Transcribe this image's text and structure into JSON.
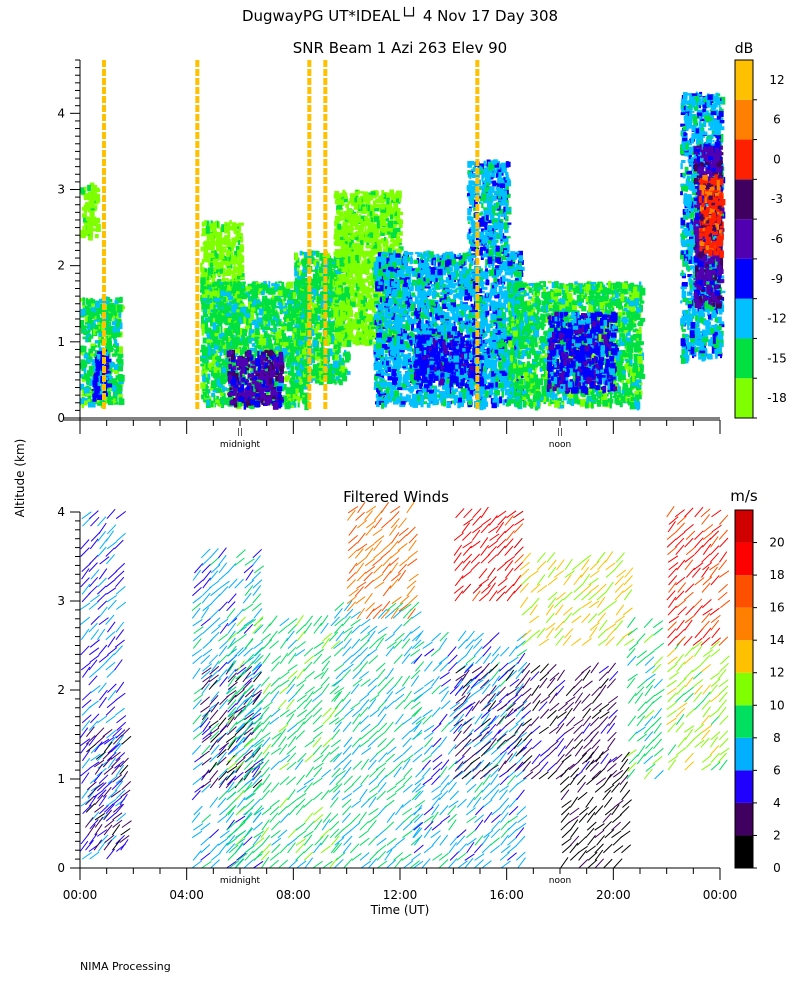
{
  "header": {
    "title": "DugwayPG UT*IDEAL└┘   4 Nov 17 Day 308",
    "ylabel_shared": "Altitude (km)",
    "footer": "NIMA Processing"
  },
  "colors": {
    "snr_scale": [
      "#7fff00",
      "#00e040",
      "#00c0ff",
      "#0000ff",
      "#5000b0",
      "#400060",
      "#ff2000",
      "#ff8000",
      "#ffc000"
    ],
    "wind_scale": [
      "#000000",
      "#400060",
      "#2000ff",
      "#00b0ff",
      "#00e060",
      "#80ff00",
      "#ffc000",
      "#ff8000",
      "#ff5000",
      "#ff0000",
      "#d00000"
    ]
  },
  "chart_data": [
    {
      "type": "heatmap",
      "title": "SNR Beam 1 Azi 263 Elev 90",
      "ylabel": "Altitude (km)",
      "ylim": [
        0,
        4.7
      ],
      "y_ticks": [
        "0",
        "1",
        "2",
        "3",
        "4"
      ],
      "x_range_hours": [
        0,
        24
      ],
      "x_annotations": [
        {
          "hour": 6,
          "label": "midnight"
        },
        {
          "hour": 18,
          "label": "noon"
        }
      ],
      "colorbar": {
        "unit": "dB",
        "tick_labels": [
          "12",
          "6",
          "0",
          "-3",
          "-6",
          "-9",
          "-12",
          "-15",
          "-18"
        ]
      },
      "data_top_km": 4.7,
      "data_bottom_km": 0.2,
      "echo_regions": [
        {
          "x": [
            0.0,
            0.6
          ],
          "y": [
            2.4,
            3.1
          ],
          "level": 0
        },
        {
          "x": [
            0.0,
            1.5
          ],
          "y": [
            0.2,
            1.6
          ],
          "level": 1
        },
        {
          "x": [
            0.4,
            1.0
          ],
          "y": [
            0.3,
            0.9
          ],
          "level": 3
        },
        {
          "x": [
            4.5,
            6.0
          ],
          "y": [
            1.4,
            2.6
          ],
          "level": 0
        },
        {
          "x": [
            4.5,
            8.5
          ],
          "y": [
            0.2,
            1.8
          ],
          "level": 1
        },
        {
          "x": [
            5.5,
            7.5
          ],
          "y": [
            0.2,
            0.9
          ],
          "level": 4
        },
        {
          "x": [
            8.0,
            10.0
          ],
          "y": [
            0.5,
            2.2
          ],
          "level": 1
        },
        {
          "x": [
            9.5,
            12.0
          ],
          "y": [
            1.0,
            3.0
          ],
          "level": 0
        },
        {
          "x": [
            11.0,
            16.5
          ],
          "y": [
            0.2,
            2.2
          ],
          "level": 2
        },
        {
          "x": [
            12.5,
            15.0
          ],
          "y": [
            0.5,
            1.1
          ],
          "level": 3
        },
        {
          "x": [
            14.5,
            16.0
          ],
          "y": [
            2.2,
            3.4
          ],
          "level": 2
        },
        {
          "x": [
            16.0,
            21.0
          ],
          "y": [
            0.2,
            1.8
          ],
          "level": 1
        },
        {
          "x": [
            17.5,
            20.0
          ],
          "y": [
            0.4,
            1.4
          ],
          "level": 3
        },
        {
          "x": [
            22.5,
            24.0
          ],
          "y": [
            0.8,
            4.3
          ],
          "level": 2
        },
        {
          "x": [
            23.0,
            24.0
          ],
          "y": [
            1.5,
            3.6
          ],
          "level": 4
        },
        {
          "x": [
            23.2,
            24.0
          ],
          "y": [
            2.2,
            3.2
          ],
          "level": 6
        }
      ],
      "vertical_streaks_hours": [
        0.9,
        4.4,
        8.6,
        9.2,
        14.9
      ]
    },
    {
      "type": "scatter",
      "title": "Filtered Winds",
      "ylabel": "Altitude (km)",
      "xlabel": "Time (UT)",
      "ylim": [
        0,
        4
      ],
      "y_ticks": [
        "0",
        "1",
        "2",
        "3",
        "4"
      ],
      "x_ticks": [
        "00:00",
        "04:00",
        "08:00",
        "12:00",
        "16:00",
        "20:00",
        "00:00"
      ],
      "x_annotations": [
        {
          "hour": 6,
          "label": "midnight"
        },
        {
          "hour": 18,
          "label": "noon"
        }
      ],
      "colorbar": {
        "unit": "m/s",
        "tick_labels": [
          "20",
          "18",
          "16",
          "14",
          "12",
          "10",
          "8",
          "6",
          "4",
          "2",
          "0"
        ],
        "range": [
          0,
          22
        ]
      },
      "wind_blocks": [
        {
          "x": [
            0.0,
            1.5
          ],
          "y": [
            0.1,
            4.0
          ],
          "speed": 6
        },
        {
          "x": [
            0.2,
            1.5
          ],
          "y": [
            0.2,
            1.5
          ],
          "speed": 3
        },
        {
          "x": [
            4.2,
            6.5
          ],
          "y": [
            0.0,
            3.5
          ],
          "speed": 7
        },
        {
          "x": [
            4.5,
            6.5
          ],
          "y": [
            0.9,
            2.2
          ],
          "speed": 3
        },
        {
          "x": [
            5.5,
            9.5
          ],
          "y": [
            0.0,
            2.8
          ],
          "speed": 9
        },
        {
          "x": [
            9.5,
            12.5
          ],
          "y": [
            0.0,
            2.9
          ],
          "speed": 8
        },
        {
          "x": [
            10.0,
            12.5
          ],
          "y": [
            2.8,
            4.0
          ],
          "speed": 16
        },
        {
          "x": [
            12.5,
            16.5
          ],
          "y": [
            0.0,
            2.6
          ],
          "speed": 7
        },
        {
          "x": [
            14.0,
            16.5
          ],
          "y": [
            3.0,
            4.0
          ],
          "speed": 19
        },
        {
          "x": [
            14.0,
            20.0
          ],
          "y": [
            1.0,
            2.2
          ],
          "speed": 3
        },
        {
          "x": [
            16.5,
            20.5
          ],
          "y": [
            2.5,
            3.5
          ],
          "speed": 12
        },
        {
          "x": [
            18.0,
            20.5
          ],
          "y": [
            0.0,
            1.2
          ],
          "speed": 1
        },
        {
          "x": [
            20.5,
            21.5
          ],
          "y": [
            1.0,
            2.7
          ],
          "speed": 9
        },
        {
          "x": [
            22.0,
            24.0
          ],
          "y": [
            1.1,
            2.5
          ],
          "speed": 11
        },
        {
          "x": [
            22.0,
            24.0
          ],
          "y": [
            2.5,
            4.0
          ],
          "speed": 18
        }
      ]
    }
  ]
}
